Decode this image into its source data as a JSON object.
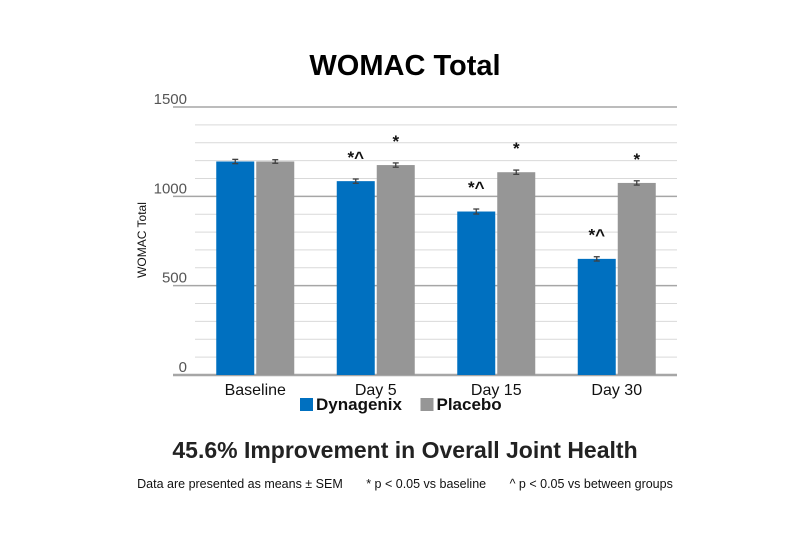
{
  "chart_data": {
    "type": "bar",
    "title": "WOMAC Total",
    "ylabel": "WOMAC Total",
    "xlabel": "",
    "ylim": [
      0,
      1500
    ],
    "yticks": [
      0,
      500,
      1000,
      1500
    ],
    "minor_grid_step": 100,
    "categories": [
      "Baseline",
      "Day 5",
      "Day 15",
      "Day 30"
    ],
    "series": [
      {
        "name": "Dynagenix",
        "color": "#0070c0",
        "values": [
          1195,
          1085,
          915,
          650
        ],
        "errors": [
          12,
          12,
          14,
          12
        ],
        "annotations": [
          "",
          "*^",
          "*^",
          "*^"
        ]
      },
      {
        "name": "Placebo",
        "color": "#969696",
        "values": [
          1195,
          1175,
          1135,
          1075
        ],
        "errors": [
          10,
          12,
          12,
          12
        ],
        "annotations": [
          "",
          "*",
          "*",
          "*"
        ]
      }
    ],
    "legend_position": "bottom"
  },
  "headline": "45.6% Improvement in Overall Joint Health",
  "footnotes": {
    "data_note": "Data are presented as means ± SEM",
    "baseline_note": "* p < 0.05 vs baseline",
    "between_note": "^ p < 0.05 vs between groups"
  },
  "colors": {
    "grid": "#d9d9d9",
    "axis": "#a6a6a6",
    "error_bar": "#404040"
  }
}
